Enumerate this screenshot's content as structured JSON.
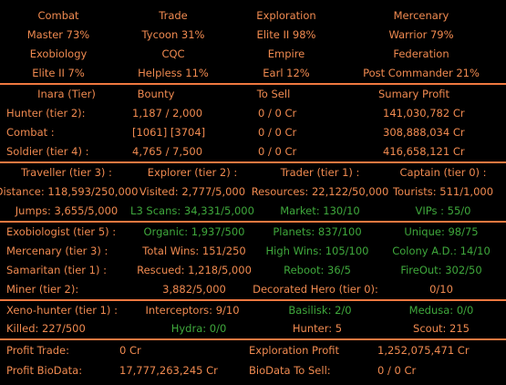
{
  "ranks": [
    {
      "label": "Combat",
      "value": "Master  73%"
    },
    {
      "label": "Trade",
      "value": "Tycoon  31%"
    },
    {
      "label": "Exploration",
      "value": "Elite II  98%"
    },
    {
      "label": "Mercenary",
      "value": "Warrior  79%"
    },
    {
      "label": "Exobiology",
      "value": "Elite II  7%"
    },
    {
      "label": "CQC",
      "value": "Helpless  11%"
    },
    {
      "label": "Empire",
      "value": "Earl  12%"
    },
    {
      "label": "Federation",
      "value": "Post Commander  21%"
    }
  ],
  "inara": {
    "headers": [
      "Inara (Tier)",
      "Bounty",
      "To Sell",
      "Sumary Profit"
    ],
    "rows": [
      [
        "Hunter (tier 2):",
        "1,187 / 2,000",
        "0 / 0 Cr",
        "141,030,782 Cr"
      ],
      [
        "Combat :",
        "[1061]   [3704]",
        "0 / 0 Cr",
        "308,888,034 Cr"
      ],
      [
        "Soldier (tier 4) :",
        "4,765 / 7,500",
        "0 / 0 Cr",
        "416,658,121 Cr"
      ]
    ]
  },
  "odyssey": {
    "headers": [
      "Traveller (tier 3) :",
      "Explorer (tier 2) :",
      "Trader (tier 1) :",
      "Captain (tier 0) :"
    ],
    "rows": [
      [
        "Distance: 118,593/250,000",
        "Visited: 2,777/5,000",
        "Resources: 22,122/50,000",
        "Tourists: 511/1,000"
      ],
      [
        "Jumps: 3,655/5,000",
        "L3 Scans: 34,331/5,000",
        "Market: 130/10",
        "VIPs : 55/0"
      ]
    ]
  },
  "careers": {
    "exobiologist": [
      "Exobiologist (tier 5) :",
      "Organic: 1,937/500",
      "Planets: 837/100",
      "Unique: 98/75"
    ],
    "mercenary": [
      "Mercenary (tier 3) :",
      "Total Wins: 151/250",
      "High Wins: 105/100",
      "Colony A.D.: 14/10"
    ],
    "samaritan": [
      "Samaritan (tier 1) :",
      "Rescued: 1,218/5,000",
      "Reboot: 36/5",
      "FireOut: 302/50"
    ],
    "miner": [
      "Miner (tier 2):",
      "3,882/5,000",
      "Decorated Hero (tier 0):",
      "0/10"
    ]
  },
  "xeno": {
    "row1": [
      "Xeno-hunter (tier 1) :",
      "Interceptors: 9/10",
      "Basilisk: 2/0",
      "Medusa: 0/0"
    ],
    "row2": [
      "Killed: 227/500",
      "Hydra: 0/0",
      "Hunter: 5",
      "Scout: 215"
    ]
  },
  "profit": {
    "trade_label": "Profit Trade:",
    "trade_value": "0 Cr",
    "exploration_label": "Exploration Profit",
    "exploration_value": "1,252,075,471 Cr",
    "biodata_label": "Profit BioData:",
    "biodata_value": "17,777,263,245 Cr",
    "biodata_sell_label": "BioData To Sell:",
    "biodata_sell_value": "0 / 0 Cr"
  },
  "colors": {
    "text": "#f08a50",
    "accent_green": "#3fa83c",
    "separator": "#f07840",
    "background": "#000000"
  }
}
